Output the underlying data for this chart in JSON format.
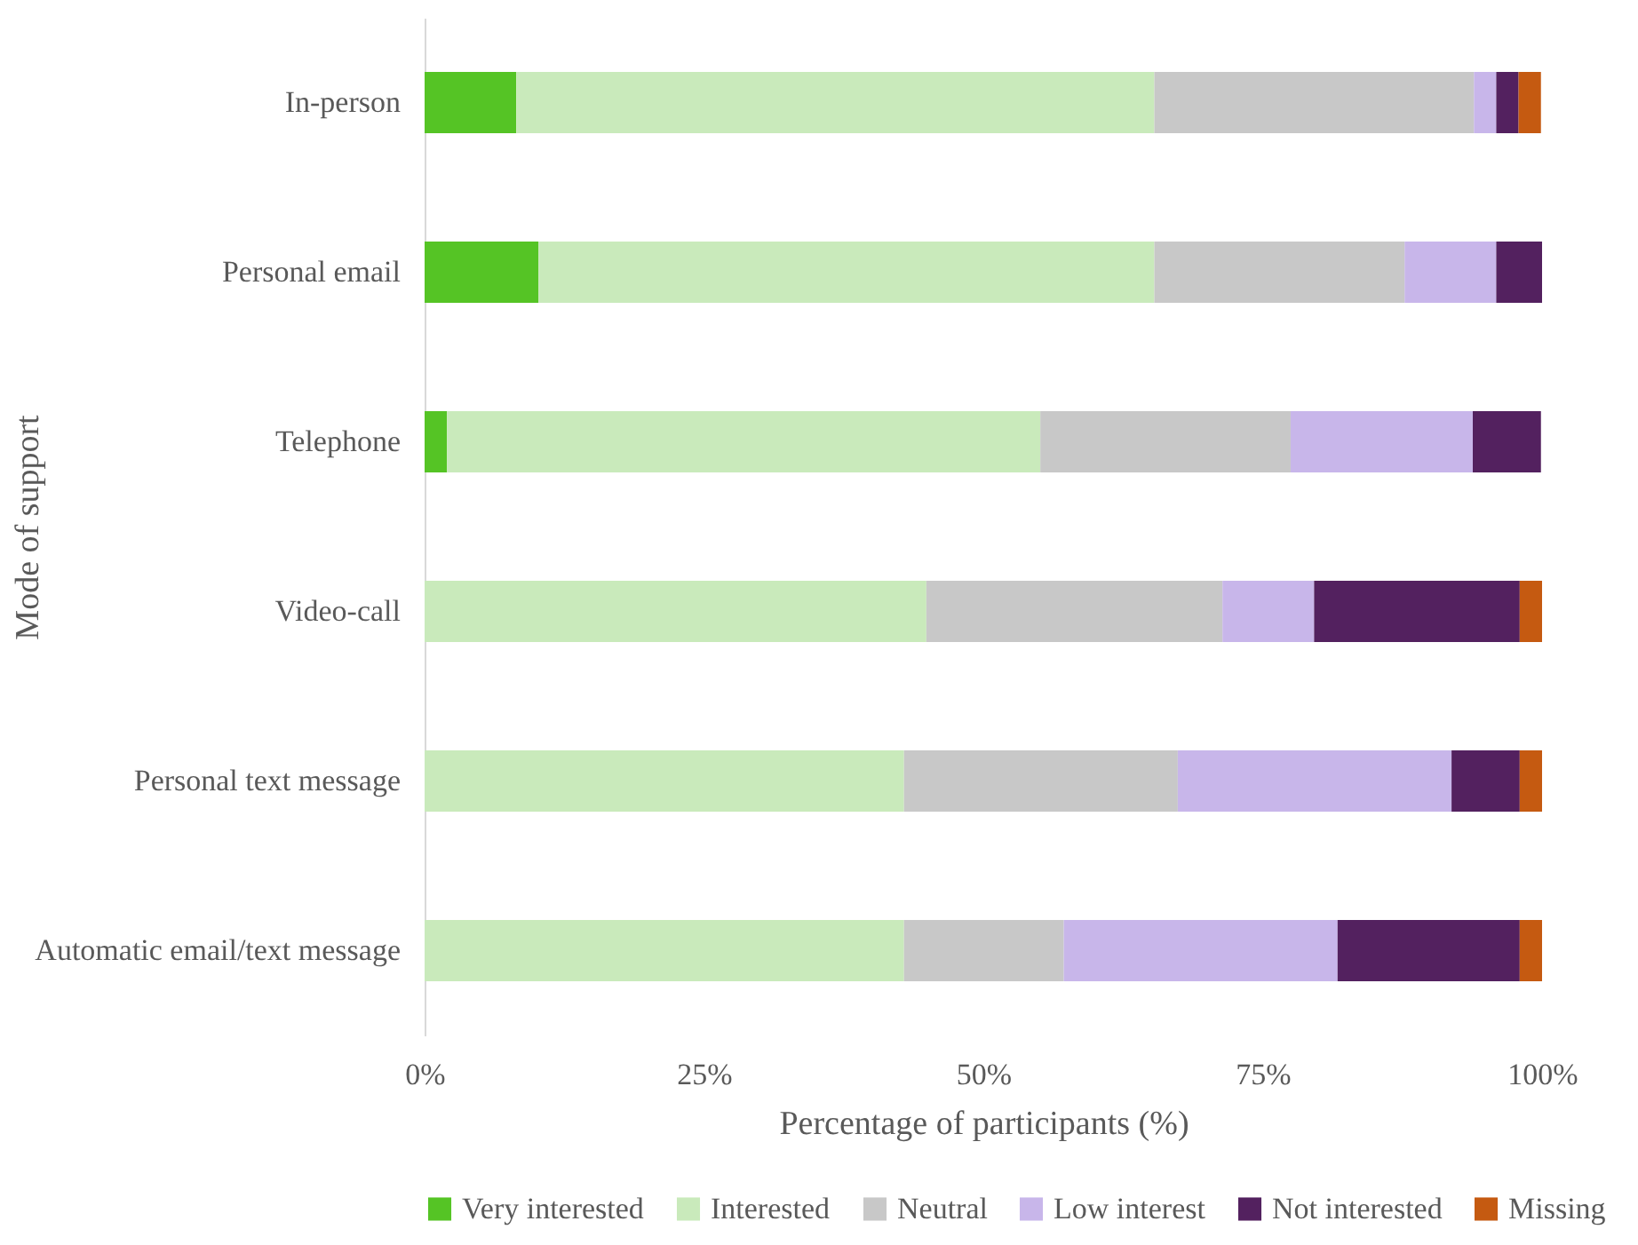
{
  "chart_data": {
    "type": "bar",
    "orientation": "horizontal",
    "stacked": true,
    "xlabel": "Percentage of participants (%)",
    "ylabel": "Mode of support",
    "categories": [
      "In-person",
      "Personal email",
      "Telephone",
      "Video-call",
      "Personal text message",
      "Automatic email/text message"
    ],
    "series": [
      {
        "name": "Very interested",
        "color": "#55c425",
        "values": [
          8.2,
          10.2,
          2.0,
          null,
          null,
          null
        ]
      },
      {
        "name": "Interested",
        "color": "#c9eabb",
        "values": [
          57.1,
          55.1,
          53.1,
          44.9,
          42.9,
          42.9
        ]
      },
      {
        "name": "Neutral",
        "color": "#c8c8c8",
        "values": [
          28.6,
          22.4,
          22.4,
          26.5,
          24.5,
          14.3
        ]
      },
      {
        "name": "Low interest",
        "color": "#c8b6ea",
        "values": [
          2.0,
          8.2,
          16.3,
          8.2,
          24.5,
          24.5
        ]
      },
      {
        "name": "Not interested",
        "color": "#53215f",
        "values": [
          2.0,
          4.1,
          6.1,
          18.4,
          6.1,
          16.3
        ]
      },
      {
        "name": "Missing",
        "color": "#c55a11",
        "values": [
          2.0,
          null,
          null,
          2.0,
          2.0,
          2.0
        ]
      }
    ],
    "xlim": [
      0,
      100
    ],
    "xticks": [
      {
        "value": 0,
        "label": "0%"
      },
      {
        "value": 25,
        "label": "25%"
      },
      {
        "value": 50,
        "label": "50%"
      },
      {
        "value": 75,
        "label": "75%"
      },
      {
        "value": 100,
        "label": "100%"
      }
    ],
    "grid": false,
    "legend": "bottom"
  }
}
